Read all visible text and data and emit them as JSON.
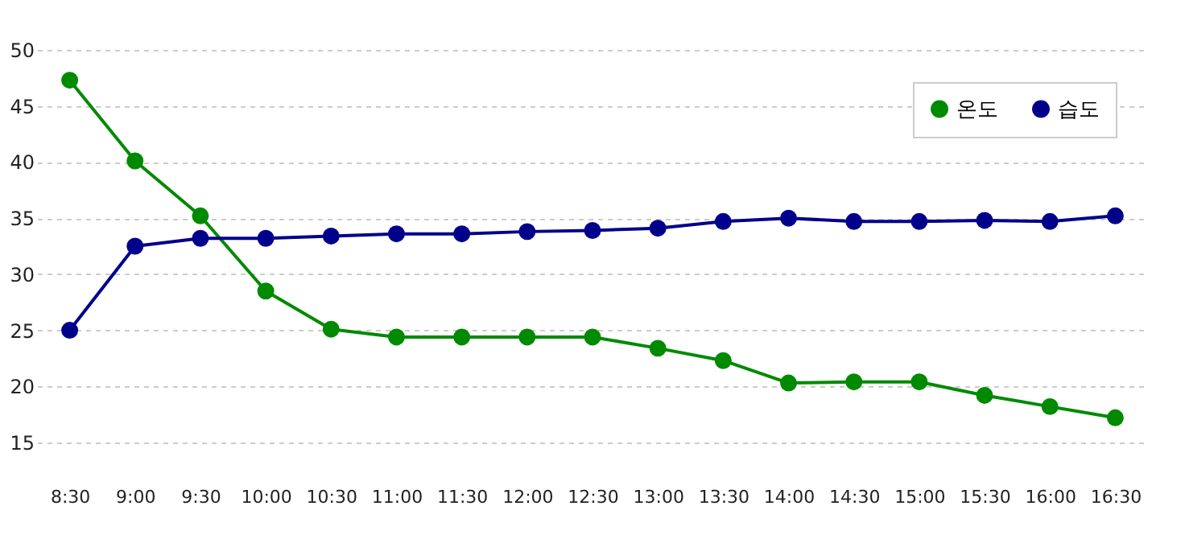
{
  "chart_data": {
    "type": "line",
    "categories": [
      "8:30",
      "9:00",
      "9:30",
      "10:00",
      "10:30",
      "11:00",
      "11:30",
      "12:00",
      "12:30",
      "13:00",
      "13:30",
      "14:00",
      "14:30",
      "15:00",
      "15:30",
      "16:00",
      "16:30"
    ],
    "series": [
      {
        "name": "온도",
        "color": "#008a00",
        "values": [
          47.3,
          40.1,
          35.2,
          28.5,
          25.1,
          24.4,
          24.4,
          24.4,
          24.4,
          23.4,
          22.3,
          20.3,
          20.4,
          20.4,
          19.2,
          18.2,
          17.2
        ]
      },
      {
        "name": "습도",
        "color": "#00008b",
        "values": [
          25.0,
          32.5,
          33.2,
          33.2,
          33.4,
          33.6,
          33.6,
          33.8,
          33.9,
          34.1,
          34.7,
          35.0,
          34.7,
          34.7,
          34.8,
          34.7,
          35.2
        ]
      }
    ],
    "ylim": [
      15,
      50
    ],
    "yticks": [
      15,
      20,
      25,
      30,
      35,
      40,
      45,
      50
    ],
    "grid": "y",
    "legend": "top right",
    "marker": "circle",
    "line_style": "solid"
  }
}
